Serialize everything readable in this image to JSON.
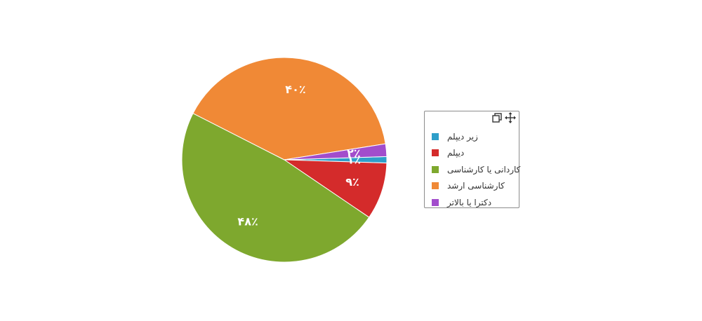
{
  "chart_data": {
    "type": "pie",
    "categories": [
      "زیر دیپلم",
      "دیپلم",
      "کاردانی یا کارشناسی",
      "کارشناسی ارشد",
      "دکترا یا بالاتر"
    ],
    "values": [
      1,
      9,
      48,
      40,
      2
    ],
    "data_labels": [
      "۱٪",
      "۹٪",
      "۴۸٪",
      "۴۰٪",
      "۲٪"
    ],
    "colors": [
      "#2e9ec9",
      "#d42b2b",
      "#7ea82e",
      "#f08936",
      "#a24dcc"
    ],
    "start": "3 o'clock",
    "direction": "clockwise",
    "legend_position": "right"
  },
  "legend": {
    "items": [
      {
        "label": "زیر دیپلم",
        "color": "#2e9ec9"
      },
      {
        "label": "دیپلم",
        "color": "#d42b2b"
      },
      {
        "label": "کاردانی یا کارشناسی",
        "color": "#7ea82e"
      },
      {
        "label": "کارشناسی ارشد",
        "color": "#f08936"
      },
      {
        "label": "دکترا یا بالاتر",
        "color": "#a24dcc"
      }
    ],
    "tools": [
      "copy-icon",
      "move-icon"
    ]
  }
}
